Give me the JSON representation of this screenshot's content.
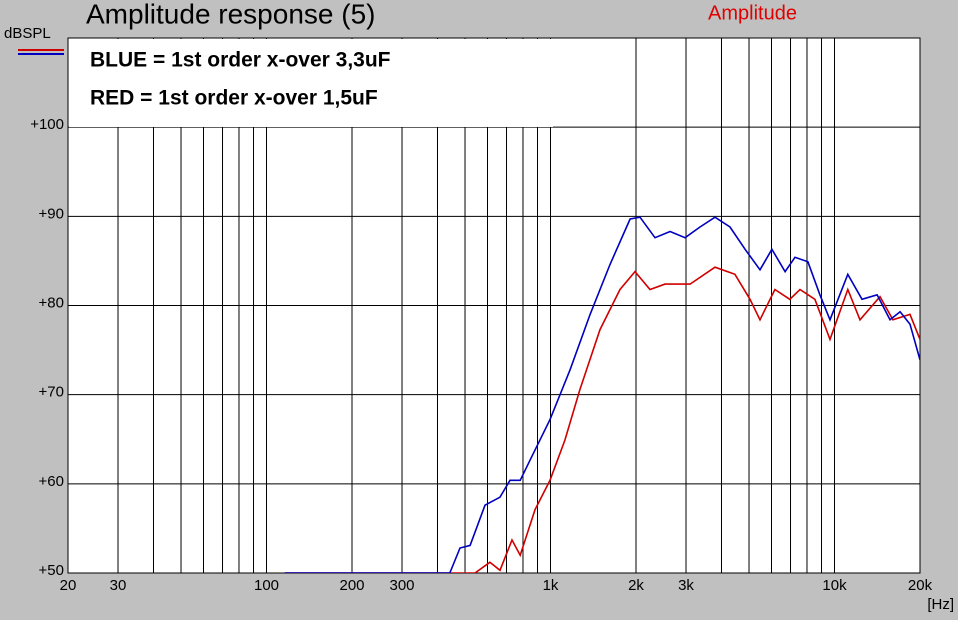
{
  "chart_data": {
    "type": "line",
    "title": "Amplitude response (5)",
    "subtitle": "Amplitude",
    "y_label": "dBSPL",
    "x_label": "[Hz]",
    "x_log": true,
    "grid": true,
    "xlim": [
      20,
      20000
    ],
    "ylim": [
      50,
      110
    ],
    "xticks": [
      20,
      30,
      100,
      200,
      300,
      {
        "value": 1000,
        "label": "1k"
      },
      {
        "value": 2000,
        "label": "2k"
      },
      {
        "value": 3000,
        "label": "3k"
      },
      {
        "value": 10000,
        "label": "10k"
      },
      {
        "value": 20000,
        "label": "20k"
      }
    ],
    "xminor": [
      40,
      50,
      60,
      70,
      80,
      90,
      400,
      500,
      600,
      700,
      800,
      900,
      4000,
      5000,
      6000,
      7000,
      8000,
      9000
    ],
    "yticks": [
      {
        "value": 50,
        "label": "+50"
      },
      {
        "value": 60,
        "label": "+60"
      },
      {
        "value": 70,
        "label": "+70"
      },
      {
        "value": 80,
        "label": "+80"
      },
      {
        "value": 90,
        "label": "+90"
      },
      {
        "value": 100,
        "label": "+100"
      }
    ],
    "series": [
      {
        "name": "BLUE = 1st order x-over 3,3uF",
        "color": "#0000c0",
        "x": [
          116,
          442,
          480,
          521,
          588,
          664,
          720,
          782,
          848,
          996,
          1172,
          1378,
          1620,
          1906,
          2066,
          2334,
          2636,
          2978,
          3360,
          3794,
          4284,
          4842,
          5466,
          6020,
          6700,
          7260,
          8060,
          8880,
          9640,
          11140,
          12500,
          14120,
          15680,
          17020,
          18440,
          20000
        ],
        "values": [
          50,
          50,
          52.8,
          53.1,
          57.6,
          58.5,
          60.4,
          60.4,
          62.7,
          67.2,
          72.8,
          79.0,
          84.6,
          89.7,
          89.9,
          87.6,
          88.3,
          87.6,
          88.8,
          89.9,
          88.8,
          86.3,
          84.0,
          86.3,
          83.8,
          85.4,
          84.9,
          81.2,
          78.4,
          83.5,
          80.7,
          81.2,
          78.4,
          79.3,
          77.9,
          73.9
        ]
      },
      {
        "name": "RED = 1st order x-over 1,5uF",
        "color": "#d00000",
        "x": [
          116,
          542,
          612,
          664,
          732,
          782,
          882,
          996,
          1124,
          1270,
          1494,
          1756,
          1984,
          2240,
          2530,
          3100,
          3794,
          4460,
          5040,
          5466,
          6170,
          6960,
          7560,
          8530,
          9640,
          11140,
          12300,
          14460,
          16050,
          18440,
          20000
        ],
        "values": [
          50,
          50,
          51.2,
          50.3,
          53.7,
          52.0,
          57.1,
          60.4,
          64.9,
          70.6,
          77.3,
          81.8,
          83.8,
          81.8,
          82.4,
          82.4,
          84.3,
          83.5,
          80.7,
          78.4,
          81.8,
          80.7,
          81.8,
          80.7,
          76.2,
          81.8,
          78.4,
          81.0,
          78.4,
          79.0,
          76.2
        ]
      }
    ]
  }
}
